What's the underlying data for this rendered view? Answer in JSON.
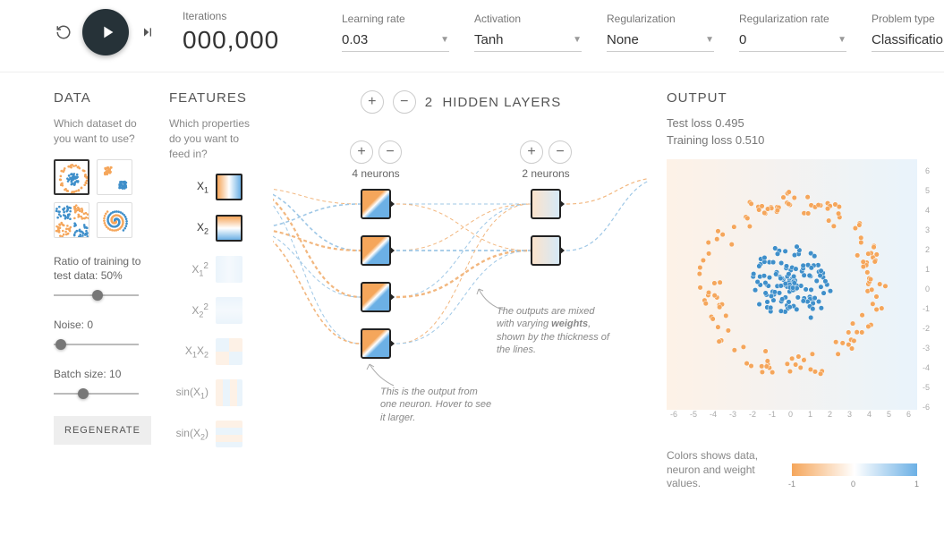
{
  "topbar": {
    "iterations_label": "Iterations",
    "iterations_value": "000,000",
    "learning_rate": {
      "label": "Learning rate",
      "value": "0.03"
    },
    "activation": {
      "label": "Activation",
      "value": "Tanh"
    },
    "regularization": {
      "label": "Regularization",
      "value": "None"
    },
    "reg_rate": {
      "label": "Regularization rate",
      "value": "0"
    },
    "problem": {
      "label": "Problem type",
      "value": "Classification"
    }
  },
  "colors": {
    "orange": "#f5a65b",
    "blue": "#3f8fca",
    "blue_light": "#6cb0e5",
    "grey_text": "#888888",
    "play_bg": "#263238"
  },
  "data_panel": {
    "title": "DATA",
    "subtext": "Which dataset do you want to use?",
    "datasets": [
      "circle",
      "gauss",
      "xor",
      "spiral"
    ],
    "selected_dataset": "circle",
    "ratio": {
      "label": "Ratio of training to test data:  ",
      "value": "50%",
      "pos_pct": 45
    },
    "noise": {
      "label": "Noise:  ",
      "value": "0",
      "pos_pct": 2
    },
    "batch": {
      "label": "Batch size:  ",
      "value": "10",
      "pos_pct": 28
    },
    "regenerate": "REGENERATE"
  },
  "features_panel": {
    "title": "FEATURES",
    "subtext": "Which properties do you want to feed in?",
    "features": [
      {
        "id": "x1",
        "label_html": "X<sub>1</sub>",
        "active": true,
        "grad": "linear-gradient(90deg,#f5a65b,#fff,#6cb0e5)"
      },
      {
        "id": "x2",
        "label_html": "X<sub>2</sub>",
        "active": true,
        "grad": "linear-gradient(180deg,#f5a65b,#fff,#6cb0e5)"
      },
      {
        "id": "x1sq",
        "label_html": "X<sub>1</sub><sup>2</sup>",
        "active": false,
        "grad": "linear-gradient(90deg,#d6e9f7,#eaf3fb,#d6e9f7)"
      },
      {
        "id": "x2sq",
        "label_html": "X<sub>2</sub><sup>2</sup>",
        "active": false,
        "grad": "linear-gradient(180deg,#d6e9f7,#eaf3fb,#d6e9f7)"
      },
      {
        "id": "x1x2",
        "label_html": "X<sub>1</sub>X<sub>2</sub>",
        "active": false,
        "grad": "conic-gradient(#fbe3cc 0 25%,#d6e9f7 0 50%,#fbe3cc 0 75%,#d6e9f7 0)"
      },
      {
        "id": "sinx1",
        "label_html": "sin(X<sub>1</sub>)",
        "active": false,
        "grad": "repeating-linear-gradient(90deg,#fbe3cc 0 8px,#d6e9f7 8px 16px)"
      },
      {
        "id": "sinx2",
        "label_html": "sin(X<sub>2</sub>)",
        "active": false,
        "grad": "repeating-linear-gradient(180deg,#fbe3cc 0 8px,#d6e9f7 8px 16px)"
      }
    ]
  },
  "network": {
    "hidden_layers_label": "HIDDEN LAYERS",
    "hidden_layers_count": "2",
    "layers": [
      {
        "neurons": 4,
        "label": "4 neurons"
      },
      {
        "neurons": 2,
        "label": "2 neurons"
      }
    ],
    "annotation_neuron": "This is the output from one neuron. Hover to see it larger.",
    "annotation_weights_pre": "The outputs are mixed with varying ",
    "annotation_weights_bold": "weights",
    "annotation_weights_post": ", shown by the thickness of the lines.",
    "edge_style": {
      "orange": "#f2b77f",
      "blue": "#9ec7e6",
      "dash": "4,3"
    }
  },
  "output": {
    "title": "OUTPUT",
    "test_loss_label": "Test loss",
    "test_loss_value": "0.495",
    "train_loss_label": "Training loss",
    "train_loss_value": "0.510",
    "axis_ticks": [
      "-6",
      "-5",
      "-4",
      "-3",
      "-2",
      "-1",
      "0",
      "1",
      "2",
      "3",
      "4",
      "5",
      "6"
    ],
    "legend_text": "Colors shows data, neuron and weight values.",
    "legend_ticks": [
      "-1",
      "0",
      "1"
    ]
  }
}
